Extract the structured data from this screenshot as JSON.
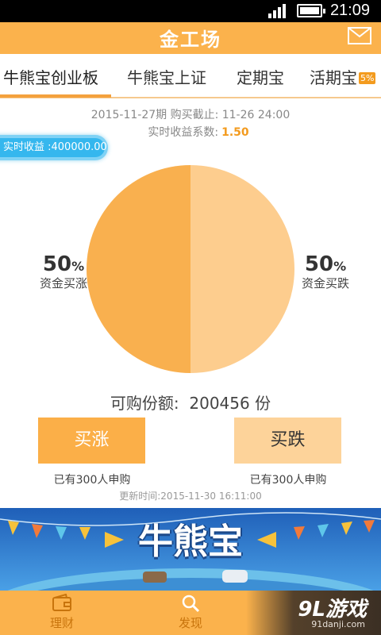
{
  "status_bar": {
    "time": "21:09"
  },
  "app_bar": {
    "title": "金工场",
    "mail_icon": "mail-icon"
  },
  "tabs": [
    {
      "label": "牛熊宝创业板",
      "active": true
    },
    {
      "label": "牛熊宝上证",
      "active": false
    },
    {
      "label": "定期宝",
      "active": false
    },
    {
      "label": "活期宝",
      "badge": "5%",
      "active": false
    }
  ],
  "info": {
    "period_line": "2015-11-27期  购买截止: 11-26  24:00",
    "coef_label": "实时收益系数:",
    "coef_value": "1.50",
    "realtime_income": "实时收益 :400000.00"
  },
  "pie": {
    "slices": [
      {
        "name": "资金买涨",
        "value": 50,
        "color": "#f9b04f"
      },
      {
        "name": "资金买跌",
        "value": 50,
        "color": "#fdcd8e"
      }
    ]
  },
  "left_pct": {
    "value": "50",
    "unit": "%",
    "label": "资金买涨"
  },
  "right_pct": {
    "value": "50",
    "unit": "%",
    "label": "资金买跌"
  },
  "quota": {
    "label": "可购份额:",
    "value": "200456",
    "unit": "份"
  },
  "buttons": {
    "up_label": "买涨",
    "down_label": "买跌",
    "up_count": "已有300人申购",
    "down_count": "已有300人申购"
  },
  "update_time": "更新时间:2015-11-30 16:11:00",
  "banner": {
    "title": "牛熊宝"
  },
  "bottom_nav": [
    {
      "label": "理财",
      "icon": "wallet-icon"
    },
    {
      "label": "发现",
      "icon": "search-icon"
    }
  ],
  "watermark": {
    "main": "9L游戏",
    "sub": "91danji.com"
  },
  "colors": {
    "primary": "#fbb24c",
    "accent": "#f39b1e",
    "light": "#fdcd8e",
    "income_blue": "#35b7ee"
  }
}
